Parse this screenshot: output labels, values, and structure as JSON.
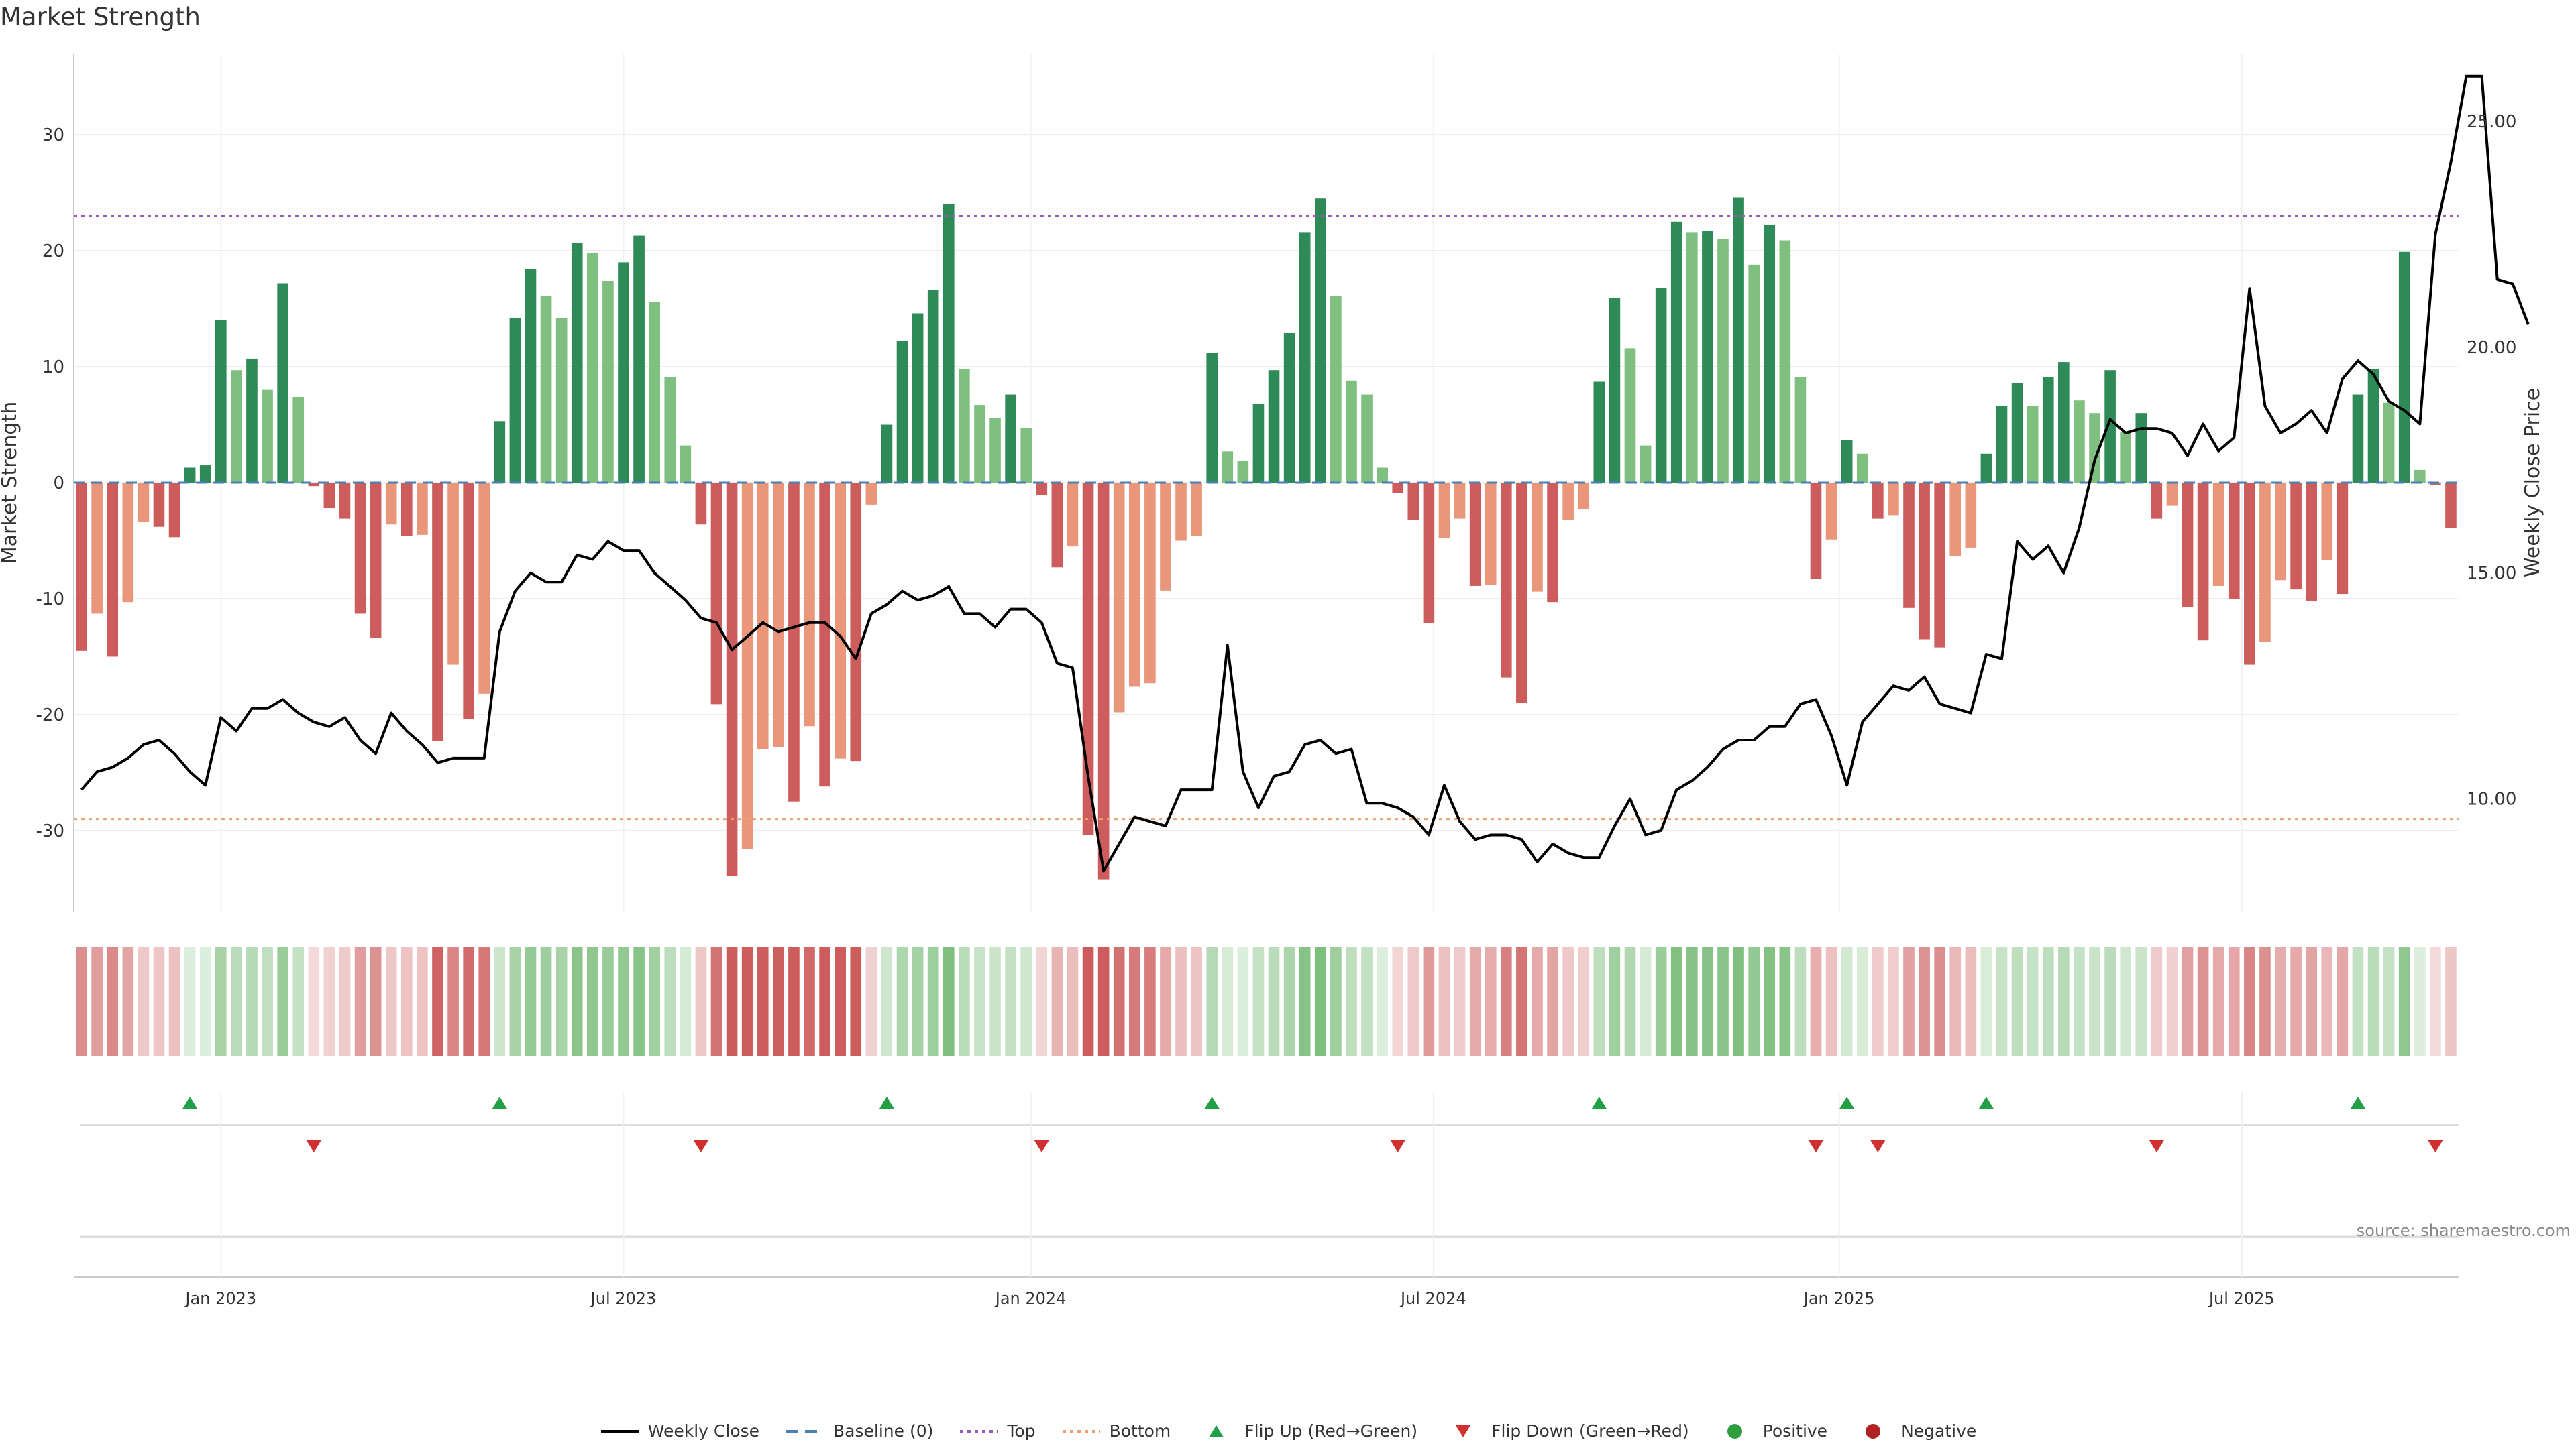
{
  "chart_data": {
    "type": "bar",
    "title": "Market Strength",
    "ylabel_left": "Market Strength",
    "ylabel_right": "Weekly Close Price",
    "ylim_left": [
      -37,
      37
    ],
    "ylim_right": [
      7.5,
      26.5
    ],
    "y_ticks_left": [
      30,
      20,
      10,
      0,
      -10,
      -20,
      -30
    ],
    "y_ticks_right": [
      "25.00",
      "20.00",
      "15.00",
      "10.00"
    ],
    "y_tick_values_right": [
      25,
      20,
      15,
      10
    ],
    "x_ticks": [
      {
        "label": "Jan 2023",
        "week": 9.5
      },
      {
        "label": "Jul 2023",
        "week": 35.5
      },
      {
        "label": "Jan 2024",
        "week": 61.8
      },
      {
        "label": "Jul 2024",
        "week": 87.8
      },
      {
        "label": "Jan 2025",
        "week": 114
      },
      {
        "label": "Jul 2025",
        "week": 140
      }
    ],
    "top_threshold": 23,
    "bottom_threshold": -29,
    "strength": [
      -14.5,
      -11.3,
      -15,
      -10.3,
      -3.4,
      -3.8,
      -4.7,
      1.3,
      1.5,
      14,
      9.7,
      10.7,
      8,
      17.2,
      7.4,
      -0.3,
      -2.2,
      -3.1,
      -11.3,
      -13.4,
      -3.6,
      -4.6,
      -4.5,
      -22.3,
      -15.7,
      -20.4,
      -18.2,
      5.3,
      14.2,
      18.4,
      16.1,
      14.2,
      20.7,
      19.8,
      17.4,
      19,
      21.3,
      15.6,
      9.1,
      3.2,
      -3.6,
      -19.1,
      -33.9,
      -31.6,
      -23,
      -22.8,
      -27.5,
      -21,
      -26.2,
      -23.8,
      -24,
      -1.9,
      5,
      12.2,
      14.6,
      16.6,
      24,
      9.8,
      6.7,
      5.6,
      7.6,
      4.7,
      -1.1,
      -7.3,
      -5.5,
      -30.4,
      -34.2,
      -19.8,
      -17.6,
      -17.3,
      -9.3,
      -5,
      -4.6,
      11.2,
      2.7,
      1.9,
      6.8,
      9.7,
      12.9,
      21.6,
      24.5,
      16.1,
      8.8,
      7.6,
      1.3,
      -0.9,
      -3.2,
      -12.1,
      -4.8,
      -3.1,
      -8.9,
      -8.8,
      -16.8,
      -19,
      -9.4,
      -10.3,
      -3.2,
      -2.3,
      8.7,
      15.9,
      11.6,
      3.2,
      16.8,
      22.5,
      21.6,
      21.7,
      21,
      24.6,
      18.8,
      22.2,
      20.9,
      9.1,
      -8.3,
      -4.9,
      3.7,
      2.5,
      -3.1,
      -2.8,
      -10.8,
      -13.5,
      -14.2,
      -6.3,
      -5.6,
      2.5,
      6.6,
      8.6,
      6.6,
      9.1,
      10.4,
      7.1,
      6,
      9.7,
      4.4,
      6,
      -3.1,
      -2,
      -10.7,
      -13.6,
      -8.9,
      -10,
      -15.7,
      -13.7,
      -8.4,
      -9.2,
      -10.2,
      -6.7,
      -9.6,
      7.6,
      9.8,
      6.9,
      19.9,
      1.1,
      -0.2,
      -3.9
    ],
    "close": [
      10.2,
      10.6,
      10.7,
      10.9,
      11.2,
      11.3,
      11,
      10.6,
      10.3,
      11.8,
      11.5,
      12,
      12,
      12.2,
      11.9,
      11.7,
      11.6,
      11.8,
      11.3,
      11,
      11.9,
      11.5,
      11.2,
      10.8,
      10.9,
      10.9,
      10.9,
      13.7,
      14.6,
      15,
      14.8,
      14.8,
      15.4,
      15.3,
      15.7,
      15.5,
      15.5,
      15,
      14.7,
      14.4,
      14,
      13.9,
      13.3,
      13.6,
      13.9,
      13.7,
      13.8,
      13.9,
      13.9,
      13.6,
      13.1,
      14.1,
      14.3,
      14.6,
      14.4,
      14.5,
      14.7,
      14.1,
      14.1,
      13.8,
      14.2,
      14.2,
      13.9,
      13,
      12.9,
      10.5,
      8.4,
      9,
      9.6,
      9.5,
      9.4,
      10.2,
      10.2,
      10.2,
      13.4,
      10.6,
      9.8,
      10.5,
      10.6,
      11.2,
      11.3,
      11,
      11.1,
      9.9,
      9.9,
      9.8,
      9.6,
      9.2,
      10.3,
      9.5,
      9.1,
      9.2,
      9.2,
      9.1,
      8.6,
      9,
      8.8,
      8.7,
      8.7,
      9.4,
      10,
      9.2,
      9.3,
      10.2,
      10.4,
      10.7,
      11.1,
      11.3,
      11.3,
      11.6,
      11.6,
      12.1,
      12.2,
      11.4,
      10.3,
      11.7,
      12.1,
      12.5,
      12.4,
      12.7,
      12.1,
      12,
      11.9,
      13.2,
      13.1,
      15.7,
      15.3,
      15.6,
      15,
      16,
      17.5,
      18.4,
      18.1,
      18.2,
      18.2,
      18.1,
      17.6,
      18.3,
      17.7,
      18,
      21.3,
      18.7,
      18.1,
      18.3,
      18.6,
      18.1,
      19.3,
      19.7,
      19.4,
      18.8,
      18.6,
      18.3,
      22.5,
      24.1,
      26,
      26,
      21.5,
      21.4,
      20.5
    ]
  },
  "source": "source: sharemaestro.com",
  "legend": {
    "items": [
      {
        "key": "weekly-close",
        "label": "Weekly Close"
      },
      {
        "key": "baseline",
        "label": "Baseline (0)"
      },
      {
        "key": "top",
        "label": "Top"
      },
      {
        "key": "bottom",
        "label": "Bottom"
      },
      {
        "key": "flip-up",
        "label": "Flip Up (Red→Green)"
      },
      {
        "key": "flip-down",
        "label": "Flip Down (Green→Red)"
      },
      {
        "key": "positive",
        "label": "Positive"
      },
      {
        "key": "negative",
        "label": "Negative"
      }
    ]
  },
  "colors": {
    "strong_green": "#2e8b57",
    "light_green": "#7fbf7f",
    "strong_red": "#cd5c5c",
    "light_red": "#e9967a",
    "price_line": "#000000",
    "top_line": "#9b59b6",
    "bottom_line": "#f0a070",
    "baseline": "#4a7fb5",
    "flip_up": "#22a045",
    "flip_down": "#d03030",
    "positive_dot": "#2e9e3e",
    "negative_dot": "#b22222"
  }
}
